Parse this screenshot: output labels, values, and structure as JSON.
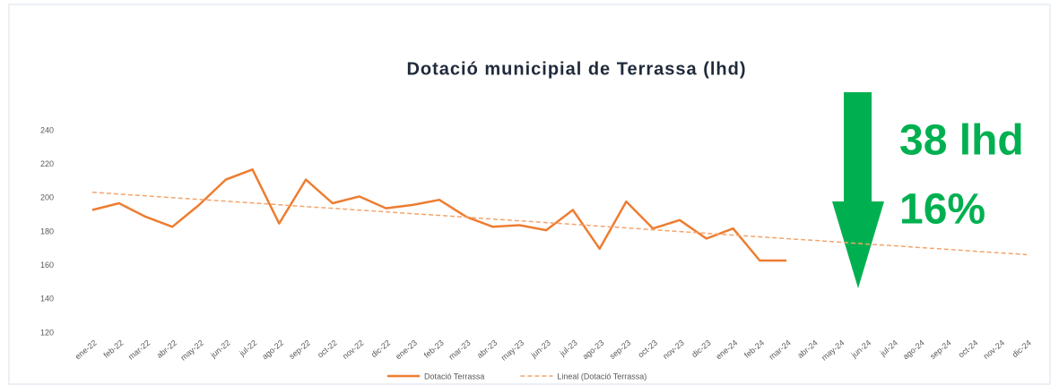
{
  "chart_data": {
    "type": "line",
    "title": "Dotació municipial de Terrassa (lhd)",
    "annotations": [
      "38 lhd",
      "16%"
    ],
    "annotation_color": "#00b050",
    "categories": [
      "ene-22",
      "feb-22",
      "mar-22",
      "abr-22",
      "may-22",
      "jun-22",
      "jul-22",
      "ago-22",
      "sep-22",
      "oct-22",
      "nov-22",
      "dic-22",
      "ene-23",
      "feb-23",
      "mar-23",
      "abr-23",
      "may-23",
      "jun-23",
      "jul-23",
      "ago-23",
      "sep-23",
      "oct-23",
      "nov-23",
      "dic-23",
      "ene-24",
      "feb-24",
      "mar-24",
      "abr-24",
      "may-24",
      "jun-24",
      "jul-24",
      "ago-24",
      "sep-24",
      "oct-24",
      "nov-24",
      "dic-24"
    ],
    "series": [
      {
        "name": "Dotació Terrassa",
        "color": "#ed7d31",
        "dashed": false,
        "values": [
          193,
          197,
          189,
          183,
          196,
          211,
          217,
          185,
          211,
          197,
          201,
          194,
          196,
          199,
          189,
          183,
          184,
          181,
          193,
          170,
          198,
          182,
          187,
          176,
          182,
          163,
          163,
          null,
          null,
          null,
          null,
          null,
          null,
          null,
          null,
          null
        ]
      },
      {
        "name": "Lineal (Dotació Terrassa)",
        "color": "#f4a46c",
        "dashed": true,
        "values": [
          203.5,
          202.4,
          201.4,
          200.3,
          199.3,
          198.2,
          197.2,
          196.1,
          195.0,
          194.0,
          192.9,
          191.9,
          190.8,
          189.8,
          188.7,
          187.6,
          186.6,
          185.5,
          184.5,
          183.4,
          182.4,
          181.3,
          180.2,
          179.2,
          178.1,
          177.1,
          176.0,
          175.0,
          173.9,
          172.8,
          171.8,
          170.7,
          169.7,
          168.6,
          167.6,
          166.5
        ]
      }
    ],
    "ylim": [
      120,
      240
    ],
    "yticks": [
      120,
      140,
      160,
      180,
      200,
      220,
      240
    ],
    "grid": true,
    "legend": "bottom"
  }
}
